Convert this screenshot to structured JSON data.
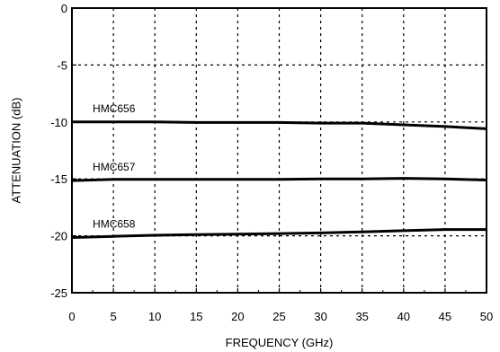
{
  "chart_data": {
    "type": "line",
    "xlabel": "FREQUENCY (GHz)",
    "ylabel": "ATTENUATION (dB)",
    "xlim": [
      0,
      50
    ],
    "ylim": [
      -25,
      0
    ],
    "xticks": [
      0,
      5,
      10,
      15,
      20,
      25,
      30,
      35,
      40,
      45,
      50
    ],
    "yticks": [
      0,
      -5,
      -10,
      -15,
      -20,
      -25
    ],
    "grid": "dotted",
    "series": [
      {
        "name": "HMC656",
        "color": "#000000",
        "x": [
          0,
          5,
          10,
          15,
          20,
          25,
          30,
          35,
          40,
          45,
          50
        ],
        "y": [
          -10.0,
          -10.0,
          -10.0,
          -10.05,
          -10.05,
          -10.05,
          -10.1,
          -10.1,
          -10.25,
          -10.4,
          -10.6
        ]
      },
      {
        "name": "HMC657",
        "color": "#000000",
        "x": [
          0,
          5,
          10,
          15,
          20,
          25,
          30,
          35,
          40,
          45,
          50
        ],
        "y": [
          -15.15,
          -15.05,
          -15.05,
          -15.05,
          -15.05,
          -15.05,
          -15.0,
          -15.0,
          -14.95,
          -15.0,
          -15.1
        ]
      },
      {
        "name": "HMC658",
        "color": "#000000",
        "x": [
          0,
          5,
          10,
          15,
          20,
          25,
          30,
          35,
          40,
          45,
          50
        ],
        "y": [
          -20.15,
          -20.05,
          -19.95,
          -19.9,
          -19.85,
          -19.8,
          -19.75,
          -19.65,
          -19.55,
          -19.45,
          -19.45
        ]
      }
    ]
  }
}
